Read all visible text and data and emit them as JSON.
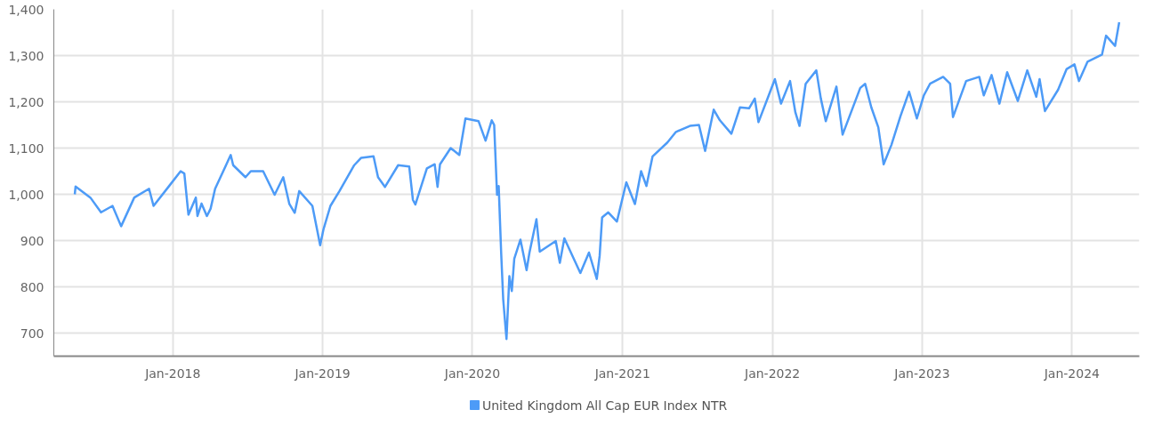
{
  "chart_data": {
    "type": "line",
    "x": [
      "2017-05-07",
      "2017-05-09",
      "2017-06-14",
      "2017-07-10",
      "2017-08-07",
      "2017-08-28",
      "2017-09-29",
      "2017-11-04",
      "2017-11-15",
      "2017-12-23",
      "2018-01-20",
      "2018-01-29",
      "2018-02-08",
      "2018-02-26",
      "2018-03-02",
      "2018-03-12",
      "2018-03-25",
      "2018-04-03",
      "2018-04-14",
      "2018-05-22",
      "2018-05-28",
      "2018-06-27",
      "2018-07-10",
      "2018-08-09",
      "2018-09-06",
      "2018-09-27",
      "2018-10-12",
      "2018-10-25",
      "2018-11-05",
      "2018-12-07",
      "2018-12-26",
      "2019-01-03",
      "2019-01-20",
      "2019-02-11",
      "2019-03-19",
      "2019-04-05",
      "2019-05-05",
      "2019-05-16",
      "2019-06-02",
      "2019-07-04",
      "2019-07-31",
      "2019-08-09",
      "2019-08-15",
      "2019-09-12",
      "2019-10-01",
      "2019-10-08",
      "2019-10-14",
      "2019-11-09",
      "2019-11-30",
      "2019-12-15",
      "2020-01-16",
      "2020-02-02",
      "2020-02-17",
      "2020-02-23",
      "2020-03-01",
      "2020-03-05",
      "2020-03-11",
      "2020-03-16",
      "2020-03-24",
      "2020-03-31",
      "2020-04-06",
      "2020-04-12",
      "2020-04-27",
      "2020-05-12",
      "2020-05-19",
      "2020-06-05",
      "2020-06-13",
      "2020-07-22",
      "2020-08-01",
      "2020-08-12",
      "2020-09-20",
      "2020-10-11",
      "2020-10-30",
      "2020-11-06",
      "2020-11-12",
      "2020-11-27",
      "2020-12-18",
      "2021-01-10",
      "2021-01-31",
      "2021-02-15",
      "2021-02-28",
      "2021-03-15",
      "2021-04-20",
      "2021-05-11",
      "2021-06-14",
      "2021-07-06",
      "2021-07-21",
      "2021-08-11",
      "2021-08-26",
      "2021-09-23",
      "2021-10-14",
      "2021-11-05",
      "2021-11-19",
      "2021-11-28",
      "2021-12-23",
      "2022-01-07",
      "2022-01-22",
      "2022-02-13",
      "2022-02-26",
      "2022-03-08",
      "2022-03-23",
      "2022-04-18",
      "2022-04-29",
      "2022-05-11",
      "2022-06-06",
      "2022-06-21",
      "2022-07-08",
      "2022-08-03",
      "2022-08-15",
      "2022-08-30",
      "2022-09-16",
      "2022-09-29",
      "2022-10-18",
      "2022-11-09",
      "2022-11-30",
      "2022-12-19",
      "2023-01-05",
      "2023-01-20",
      "2023-02-21",
      "2023-03-10",
      "2023-03-17",
      "2023-04-18",
      "2023-05-20",
      "2023-05-31",
      "2023-06-19",
      "2023-07-08",
      "2023-07-27",
      "2023-08-22",
      "2023-09-14",
      "2023-10-06",
      "2023-10-14",
      "2023-10-27",
      "2023-11-28",
      "2023-12-19",
      "2024-01-07",
      "2024-01-18",
      "2024-02-08",
      "2024-03-14",
      "2024-03-24",
      "2024-04-15",
      "2024-04-25"
    ],
    "series": [
      {
        "name": "United Kingdom All Cap EUR Index NTR",
        "color": "#4d9bf7",
        "values": [
          1000,
          1017,
          993,
          961,
          975,
          931,
          993,
          1012,
          975,
          1018,
          1050,
          1045,
          956,
          993,
          953,
          980,
          953,
          969,
          1012,
          1085,
          1063,
          1037,
          1050,
          1050,
          999,
          1037,
          979,
          960,
          1007,
          975,
          890,
          924,
          975,
          1007,
          1063,
          1079,
          1082,
          1037,
          1016,
          1063,
          1060,
          988,
          978,
          1056,
          1065,
          1016,
          1065,
          1100,
          1085,
          1164,
          1158,
          1116,
          1160,
          1150,
          999,
          1018,
          874,
          773,
          687,
          823,
          791,
          861,
          902,
          836,
          874,
          946,
          876,
          899,
          852,
          905,
          830,
          874,
          817,
          867,
          950,
          961,
          941,
          1026,
          979,
          1050,
          1018,
          1082,
          1112,
          1135,
          1148,
          1150,
          1094,
          1183,
          1160,
          1131,
          1188,
          1186,
          1207,
          1156,
          1214,
          1249,
          1196,
          1245,
          1177,
          1148,
          1239,
          1268,
          1207,
          1158,
          1233,
          1129,
          1169,
          1230,
          1239,
          1188,
          1145,
          1065,
          1107,
          1169,
          1222,
          1164,
          1214,
          1239,
          1254,
          1239,
          1167,
          1245,
          1254,
          1214,
          1258,
          1196,
          1264,
          1202,
          1268,
          1211,
          1249,
          1180,
          1226,
          1271,
          1281,
          1245,
          1287,
          1302,
          1343,
          1321,
          1372
        ]
      }
    ],
    "xlim": [
      "2017-03-17",
      "2024-06-13"
    ],
    "xticks": [
      {
        "value": "2018-01-01",
        "label": "Jan-2018"
      },
      {
        "value": "2019-01-01",
        "label": "Jan-2019"
      },
      {
        "value": "2020-01-01",
        "label": "Jan-2020"
      },
      {
        "value": "2021-01-01",
        "label": "Jan-2021"
      },
      {
        "value": "2022-01-01",
        "label": "Jan-2022"
      },
      {
        "value": "2023-01-01",
        "label": "Jan-2023"
      },
      {
        "value": "2024-01-01",
        "label": "Jan-2024"
      }
    ],
    "ylim": [
      650,
      1400
    ],
    "yticks": [
      {
        "value": 700,
        "label": "700"
      },
      {
        "value": 800,
        "label": "800"
      },
      {
        "value": 900,
        "label": "900"
      },
      {
        "value": 1000,
        "label": "1,000"
      },
      {
        "value": 1100,
        "label": "1,100"
      },
      {
        "value": 1200,
        "label": "1,200"
      },
      {
        "value": 1300,
        "label": "1,300"
      },
      {
        "value": 1400,
        "label": "1,400"
      }
    ],
    "grid": true,
    "legend": "bottom"
  }
}
